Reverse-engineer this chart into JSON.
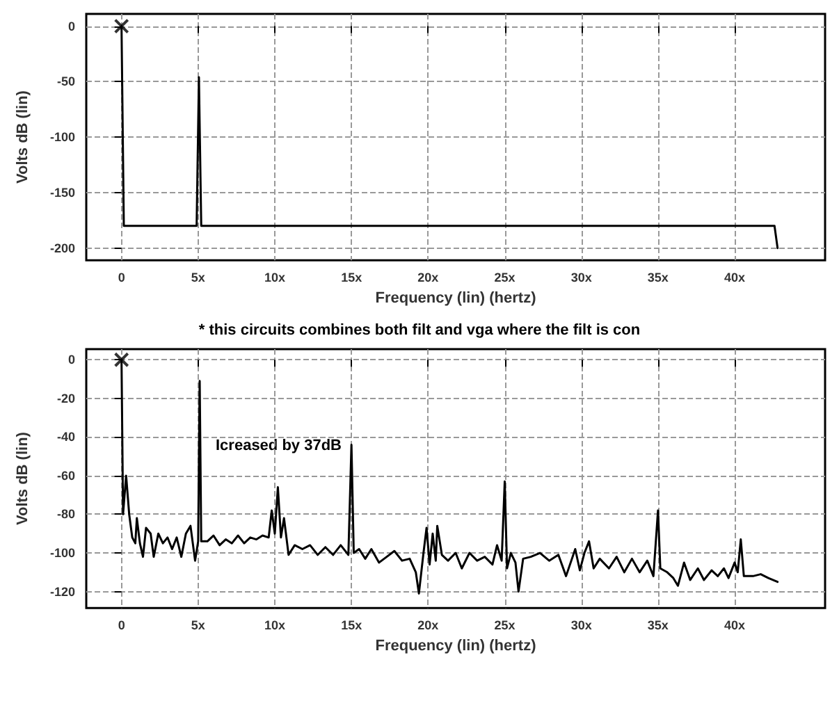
{
  "chart_data": [
    {
      "type": "line",
      "xlabel": "Frequency (lin) (hertz)",
      "ylabel": "Volts dB (lin)",
      "xlim": [
        -2.3,
        45.9
      ],
      "ylim": [
        -211,
        11
      ],
      "xticks": [
        0,
        {
          "value": 5,
          "label": "5x"
        },
        {
          "value": 10,
          "label": "10x"
        },
        {
          "value": 15,
          "label": "15x"
        },
        {
          "value": 20,
          "label": "20x"
        },
        {
          "value": 25,
          "label": "25x"
        },
        {
          "value": 30,
          "label": "30x"
        },
        {
          "value": 35,
          "label": "35x"
        },
        {
          "value": 40,
          "label": "40x"
        }
      ],
      "yticks": [
        0,
        -50,
        -100,
        -150,
        -200
      ],
      "grid": true,
      "line_style": "solid",
      "marker": "none",
      "series": [
        {
          "color": "#000000",
          "x": [
            0,
            0.15,
            4.9,
            5.05,
            5.2,
            42.6,
            42.8
          ],
          "values": [
            0,
            -180,
            -180,
            -46,
            -180,
            -180,
            -200
          ]
        },
        {
          "type": "scatter",
          "marker": "cross",
          "color": "#000000",
          "x": [
            0
          ],
          "values": [
            0
          ]
        }
      ]
    },
    {
      "type": "line",
      "title": "* this circuits combines both filt and vga where the filt is con",
      "xlabel": "Frequency (lin) (hertz)",
      "ylabel": "Volts dB (lin)",
      "xlim": [
        -2.3,
        45.9
      ],
      "ylim": [
        -128.5,
        5.5
      ],
      "xticks": [
        0,
        {
          "value": 5,
          "label": "5x"
        },
        {
          "value": 10,
          "label": "10x"
        },
        {
          "value": 15,
          "label": "15x"
        },
        {
          "value": 20,
          "label": "20x"
        },
        {
          "value": 25,
          "label": "25x"
        },
        {
          "value": 30,
          "label": "30x"
        },
        {
          "value": 35,
          "label": "35x"
        },
        {
          "value": 40,
          "label": "40x"
        }
      ],
      "yticks": [
        0,
        -20,
        -40,
        -60,
        -80,
        -100,
        -120
      ],
      "grid": true,
      "line_style": "solid",
      "marker": "none",
      "annotations": [
        "Icreased by 37dB"
      ],
      "series": [
        {
          "color": "#000000",
          "x": [
            0,
            0.1,
            0.3,
            0.5,
            0.7,
            0.9,
            1.0,
            1.2,
            1.4,
            1.6,
            1.9,
            2.1,
            2.4,
            2.7,
            3.0,
            3.3,
            3.6,
            3.9,
            4.2,
            4.5,
            4.8,
            5.0,
            5.1,
            5.2,
            5.6,
            6.0,
            6.4,
            6.8,
            7.2,
            7.6,
            8.0,
            8.4,
            8.8,
            9.2,
            9.6,
            9.8,
            10.0,
            10.2,
            10.4,
            10.6,
            10.9,
            11.3,
            11.8,
            12.3,
            12.8,
            13.3,
            13.8,
            14.3,
            14.8,
            15.0,
            15.15,
            15.5,
            15.9,
            16.3,
            16.8,
            17.3,
            17.8,
            18.3,
            18.8,
            19.2,
            19.4,
            19.7,
            19.9,
            20.1,
            20.3,
            20.5,
            20.6,
            20.9,
            21.3,
            21.8,
            22.2,
            22.7,
            23.2,
            23.7,
            24.2,
            24.5,
            24.8,
            25.0,
            25.15,
            25.4,
            25.7,
            25.9,
            26.2,
            26.7,
            27.3,
            27.9,
            28.5,
            29.0,
            29.6,
            29.9,
            30.2,
            30.5,
            30.8,
            31.2,
            31.8,
            32.3,
            32.8,
            33.3,
            33.8,
            34.3,
            34.7,
            35.0,
            35.15,
            35.6,
            36.0,
            36.3,
            36.7,
            37.1,
            37.6,
            38.0,
            38.5,
            38.9,
            39.3,
            39.6,
            40.0,
            40.2,
            40.4,
            40.6,
            41.2,
            41.7,
            42.2,
            42.8
          ],
          "values": [
            0,
            -80,
            -60,
            -80,
            -92,
            -95,
            -82,
            -95,
            -102,
            -87,
            -90,
            -102,
            -90,
            -95,
            -92,
            -98,
            -92,
            -102,
            -90,
            -86,
            -104,
            -94,
            -11,
            -94,
            -94,
            -91,
            -96,
            -93,
            -95,
            -91,
            -95,
            -92,
            -93,
            -91,
            -92,
            -78,
            -90,
            -66,
            -92,
            -82,
            -101,
            -96,
            -98,
            -96,
            -101,
            -97,
            -101,
            -96,
            -101,
            -44,
            -100,
            -98,
            -103,
            -98,
            -105,
            -102,
            -99,
            -104,
            -103,
            -110,
            -121,
            -100,
            -87,
            -106,
            -90,
            -104,
            -86,
            -101,
            -104,
            -100,
            -108,
            -100,
            -104,
            -102,
            -106,
            -96,
            -104,
            -63,
            -108,
            -100,
            -105,
            -120,
            -103,
            -102,
            -100,
            -104,
            -101,
            -112,
            -98,
            -109,
            -100,
            -94,
            -108,
            -103,
            -108,
            -102,
            -110,
            -103,
            -110,
            -104,
            -112,
            -78,
            -108,
            -110,
            -113,
            -117,
            -105,
            -114,
            -108,
            -114,
            -109,
            -112,
            -108,
            -113,
            -105,
            -110,
            -93,
            -112,
            -112,
            -111,
            -113,
            -115
          ]
        },
        {
          "type": "scatter",
          "marker": "cross",
          "color": "#000000",
          "x": [
            0
          ],
          "values": [
            0
          ]
        }
      ]
    }
  ]
}
